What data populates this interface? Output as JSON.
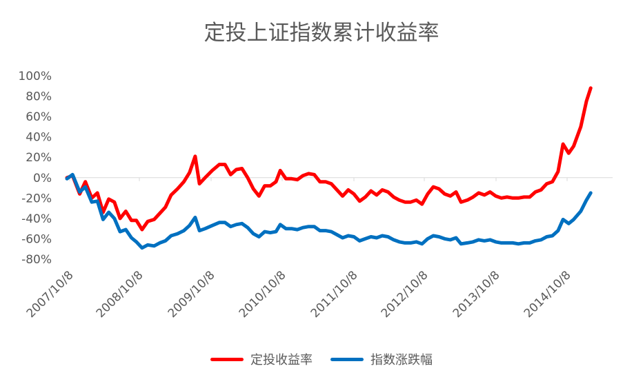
{
  "chart_data": {
    "type": "line",
    "title": "定投上证指数累计收益率",
    "x_ticks": [
      "2007/10/8",
      "2008/10/8",
      "2009/10/8",
      "2010/10/8",
      "2011/10/8",
      "2012/10/8",
      "2013/10/8",
      "2014/10/8"
    ],
    "y_ticks": [
      "100%",
      "80%",
      "60%",
      "40%",
      "20%",
      "0%",
      "-20%",
      "-40%",
      "-60%",
      "-80%"
    ],
    "ylim": [
      -80,
      100
    ],
    "x_range_years": [
      2007.77,
      2015.47
    ],
    "legend_position": "bottom",
    "series": [
      {
        "name": "定投收益率",
        "color": "#ff0000",
        "points": [
          [
            2007.77,
            0
          ],
          [
            2007.85,
            2
          ],
          [
            2007.95,
            -16
          ],
          [
            2008.03,
            -4
          ],
          [
            2008.12,
            -20
          ],
          [
            2008.2,
            -15
          ],
          [
            2008.28,
            -34
          ],
          [
            2008.36,
            -21
          ],
          [
            2008.44,
            -24
          ],
          [
            2008.52,
            -40
          ],
          [
            2008.6,
            -33
          ],
          [
            2008.68,
            -42
          ],
          [
            2008.75,
            -42
          ],
          [
            2008.83,
            -51
          ],
          [
            2008.91,
            -43
          ],
          [
            2009.0,
            -41
          ],
          [
            2009.08,
            -35
          ],
          [
            2009.16,
            -29
          ],
          [
            2009.24,
            -17
          ],
          [
            2009.33,
            -11
          ],
          [
            2009.42,
            -4
          ],
          [
            2009.5,
            5
          ],
          [
            2009.58,
            21
          ],
          [
            2009.64,
            -6
          ],
          [
            2009.72,
            0
          ],
          [
            2009.82,
            7
          ],
          [
            2009.92,
            13
          ],
          [
            2010.0,
            13
          ],
          [
            2010.08,
            3
          ],
          [
            2010.16,
            8
          ],
          [
            2010.24,
            9
          ],
          [
            2010.32,
            0
          ],
          [
            2010.4,
            -11
          ],
          [
            2010.48,
            -18
          ],
          [
            2010.56,
            -8
          ],
          [
            2010.64,
            -8
          ],
          [
            2010.72,
            -4
          ],
          [
            2010.78,
            7
          ],
          [
            2010.86,
            -1
          ],
          [
            2010.94,
            -1
          ],
          [
            2011.02,
            -2
          ],
          [
            2011.1,
            2
          ],
          [
            2011.18,
            4
          ],
          [
            2011.26,
            3
          ],
          [
            2011.34,
            -4
          ],
          [
            2011.42,
            -4
          ],
          [
            2011.5,
            -6
          ],
          [
            2011.58,
            -12
          ],
          [
            2011.66,
            -18
          ],
          [
            2011.74,
            -12
          ],
          [
            2011.82,
            -16
          ],
          [
            2011.9,
            -23
          ],
          [
            2011.98,
            -19
          ],
          [
            2012.06,
            -13
          ],
          [
            2012.14,
            -17
          ],
          [
            2012.22,
            -12
          ],
          [
            2012.3,
            -14
          ],
          [
            2012.38,
            -19
          ],
          [
            2012.46,
            -22
          ],
          [
            2012.54,
            -24
          ],
          [
            2012.62,
            -24
          ],
          [
            2012.7,
            -22
          ],
          [
            2012.78,
            -26
          ],
          [
            2012.86,
            -16
          ],
          [
            2012.94,
            -9
          ],
          [
            2013.02,
            -11
          ],
          [
            2013.1,
            -16
          ],
          [
            2013.18,
            -18
          ],
          [
            2013.26,
            -14
          ],
          [
            2013.33,
            -24
          ],
          [
            2013.42,
            -22
          ],
          [
            2013.5,
            -19
          ],
          [
            2013.58,
            -15
          ],
          [
            2013.66,
            -17
          ],
          [
            2013.74,
            -14
          ],
          [
            2013.82,
            -18
          ],
          [
            2013.9,
            -20
          ],
          [
            2013.98,
            -19
          ],
          [
            2014.06,
            -20
          ],
          [
            2014.14,
            -20
          ],
          [
            2014.22,
            -19
          ],
          [
            2014.3,
            -19
          ],
          [
            2014.38,
            -14
          ],
          [
            2014.46,
            -12
          ],
          [
            2014.54,
            -6
          ],
          [
            2014.62,
            -4
          ],
          [
            2014.7,
            6
          ],
          [
            2014.77,
            33
          ],
          [
            2014.85,
            24
          ],
          [
            2014.92,
            31
          ],
          [
            2015.02,
            50
          ],
          [
            2015.1,
            75
          ],
          [
            2015.16,
            88
          ]
        ]
      },
      {
        "name": "指数涨跌幅",
        "color": "#0070c0",
        "points": [
          [
            2007.77,
            -1
          ],
          [
            2007.85,
            3
          ],
          [
            2007.95,
            -14
          ],
          [
            2008.03,
            -9
          ],
          [
            2008.12,
            -24
          ],
          [
            2008.2,
            -23
          ],
          [
            2008.28,
            -41
          ],
          [
            2008.36,
            -34
          ],
          [
            2008.44,
            -40
          ],
          [
            2008.52,
            -53
          ],
          [
            2008.6,
            -51
          ],
          [
            2008.68,
            -59
          ],
          [
            2008.75,
            -63
          ],
          [
            2008.83,
            -69
          ],
          [
            2008.91,
            -66
          ],
          [
            2009.0,
            -67
          ],
          [
            2009.08,
            -64
          ],
          [
            2009.16,
            -62
          ],
          [
            2009.24,
            -57
          ],
          [
            2009.33,
            -55
          ],
          [
            2009.42,
            -52
          ],
          [
            2009.5,
            -47
          ],
          [
            2009.58,
            -39
          ],
          [
            2009.64,
            -52
          ],
          [
            2009.72,
            -50
          ],
          [
            2009.82,
            -47
          ],
          [
            2009.92,
            -44
          ],
          [
            2010.0,
            -44
          ],
          [
            2010.08,
            -48
          ],
          [
            2010.16,
            -46
          ],
          [
            2010.24,
            -45
          ],
          [
            2010.32,
            -49
          ],
          [
            2010.4,
            -55
          ],
          [
            2010.48,
            -58
          ],
          [
            2010.56,
            -53
          ],
          [
            2010.64,
            -54
          ],
          [
            2010.72,
            -53
          ],
          [
            2010.78,
            -46
          ],
          [
            2010.86,
            -50
          ],
          [
            2010.94,
            -50
          ],
          [
            2011.02,
            -51
          ],
          [
            2011.1,
            -49
          ],
          [
            2011.18,
            -48
          ],
          [
            2011.26,
            -48
          ],
          [
            2011.34,
            -52
          ],
          [
            2011.42,
            -52
          ],
          [
            2011.5,
            -53
          ],
          [
            2011.58,
            -56
          ],
          [
            2011.66,
            -59
          ],
          [
            2011.74,
            -57
          ],
          [
            2011.82,
            -58
          ],
          [
            2011.9,
            -62
          ],
          [
            2011.98,
            -60
          ],
          [
            2012.06,
            -58
          ],
          [
            2012.14,
            -59
          ],
          [
            2012.22,
            -57
          ],
          [
            2012.3,
            -58
          ],
          [
            2012.38,
            -61
          ],
          [
            2012.46,
            -63
          ],
          [
            2012.54,
            -64
          ],
          [
            2012.62,
            -64
          ],
          [
            2012.7,
            -63
          ],
          [
            2012.78,
            -65
          ],
          [
            2012.86,
            -60
          ],
          [
            2012.94,
            -57
          ],
          [
            2013.02,
            -58
          ],
          [
            2013.1,
            -60
          ],
          [
            2013.18,
            -61
          ],
          [
            2013.26,
            -59
          ],
          [
            2013.33,
            -65
          ],
          [
            2013.42,
            -64
          ],
          [
            2013.5,
            -63
          ],
          [
            2013.58,
            -61
          ],
          [
            2013.66,
            -62
          ],
          [
            2013.74,
            -61
          ],
          [
            2013.82,
            -63
          ],
          [
            2013.9,
            -64
          ],
          [
            2013.98,
            -64
          ],
          [
            2014.06,
            -64
          ],
          [
            2014.14,
            -65
          ],
          [
            2014.22,
            -64
          ],
          [
            2014.3,
            -64
          ],
          [
            2014.38,
            -62
          ],
          [
            2014.46,
            -61
          ],
          [
            2014.54,
            -58
          ],
          [
            2014.62,
            -57
          ],
          [
            2014.7,
            -52
          ],
          [
            2014.77,
            -41
          ],
          [
            2014.85,
            -45
          ],
          [
            2014.92,
            -41
          ],
          [
            2015.02,
            -33
          ],
          [
            2015.1,
            -22
          ],
          [
            2015.16,
            -15
          ]
        ]
      }
    ]
  }
}
